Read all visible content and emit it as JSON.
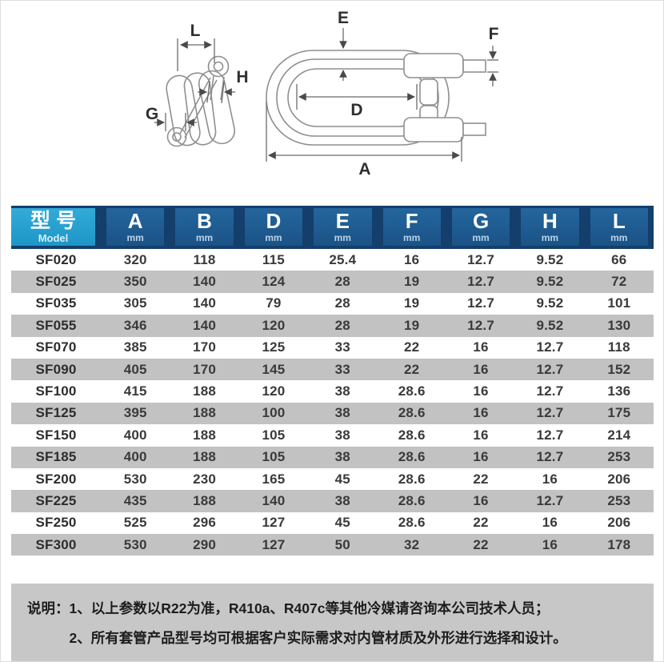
{
  "diagram": {
    "labels": {
      "L": "L",
      "H": "H",
      "G": "G",
      "E": "E",
      "F": "F",
      "D": "D",
      "A": "A"
    }
  },
  "table": {
    "columns": [
      {
        "label": "型号",
        "sub": "Model"
      },
      {
        "label": "A",
        "sub": "mm"
      },
      {
        "label": "B",
        "sub": "mm"
      },
      {
        "label": "D",
        "sub": "mm"
      },
      {
        "label": "E",
        "sub": "mm"
      },
      {
        "label": "F",
        "sub": "mm"
      },
      {
        "label": "G",
        "sub": "mm"
      },
      {
        "label": "H",
        "sub": "mm"
      },
      {
        "label": "L",
        "sub": "mm"
      }
    ],
    "rows": [
      {
        "model": "SF020",
        "values": [
          "320",
          "118",
          "115",
          "25.4",
          "16",
          "12.7",
          "9.52",
          "66"
        ]
      },
      {
        "model": "SF025",
        "values": [
          "350",
          "140",
          "124",
          "28",
          "19",
          "12.7",
          "9.52",
          "72"
        ]
      },
      {
        "model": "SF035",
        "values": [
          "305",
          "140",
          "79",
          "28",
          "19",
          "12.7",
          "9.52",
          "101"
        ]
      },
      {
        "model": "SF055",
        "values": [
          "346",
          "140",
          "120",
          "28",
          "19",
          "12.7",
          "9.52",
          "130"
        ]
      },
      {
        "model": "SF070",
        "values": [
          "385",
          "170",
          "125",
          "33",
          "22",
          "16",
          "12.7",
          "118"
        ]
      },
      {
        "model": "SF090",
        "values": [
          "405",
          "170",
          "145",
          "33",
          "22",
          "16",
          "12.7",
          "152"
        ]
      },
      {
        "model": "SF100",
        "values": [
          "415",
          "188",
          "120",
          "38",
          "28.6",
          "16",
          "12.7",
          "136"
        ]
      },
      {
        "model": "SF125",
        "values": [
          "395",
          "188",
          "100",
          "38",
          "28.6",
          "16",
          "12.7",
          "175"
        ]
      },
      {
        "model": "SF150",
        "values": [
          "400",
          "188",
          "105",
          "38",
          "28.6",
          "16",
          "12.7",
          "214"
        ]
      },
      {
        "model": "SF185",
        "values": [
          "400",
          "188",
          "105",
          "38",
          "28.6",
          "16",
          "12.7",
          "253"
        ]
      },
      {
        "model": "SF200",
        "values": [
          "530",
          "230",
          "165",
          "45",
          "28.6",
          "22",
          "16",
          "206"
        ]
      },
      {
        "model": "SF225",
        "values": [
          "435",
          "188",
          "140",
          "38",
          "28.6",
          "16",
          "12.7",
          "253"
        ]
      },
      {
        "model": "SF250",
        "values": [
          "525",
          "296",
          "127",
          "45",
          "28.6",
          "22",
          "16",
          "206"
        ]
      },
      {
        "model": "SF300",
        "values": [
          "530",
          "290",
          "127",
          "50",
          "32",
          "22",
          "16",
          "178"
        ]
      }
    ]
  },
  "notes": {
    "prefix": "说明：",
    "items": [
      "1、以上参数以R22为准，R410a、R407c等其他冷媒请咨询本公司技术人员；",
      "2、所有套管产品型号均可根据客户实际需求对内管材质及外形进行选择和设计。"
    ]
  },
  "colors": {
    "header_navy": "#143e6b",
    "header_blue": "#1e5c92",
    "header_cyan": "#2aa7d6",
    "row_alt_gray": "#c2c2c2",
    "note_bg": "#c7c7c7",
    "diagram_line": "#8f8f8f"
  }
}
